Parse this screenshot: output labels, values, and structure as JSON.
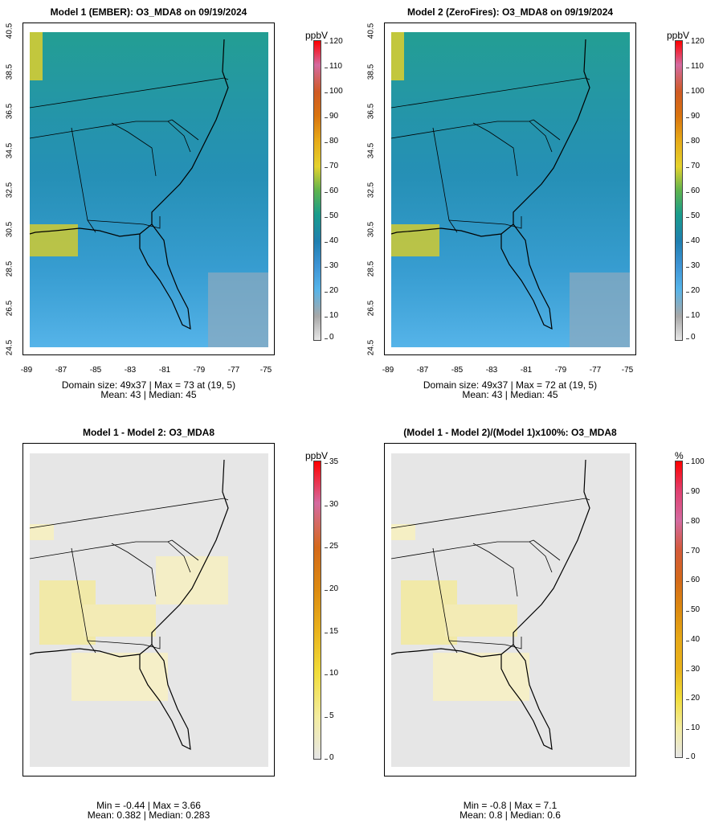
{
  "panels": [
    {
      "title": "Model 1 (EMBER): O3_MDA8 on 09/19/2024",
      "stats_line1": "Domain size: 49x37 | Max = 73 at (19, 5)",
      "stats_line2": "Mean: 43 |  Median: 45",
      "colorbar_unit": "ppbV",
      "colorbar_ticks": [
        "120",
        "110",
        "100",
        "90",
        "80",
        "70",
        "60",
        "50",
        "40",
        "30",
        "20",
        "10",
        "0"
      ],
      "kind": "conc"
    },
    {
      "title": "Model 2 (ZeroFires): O3_MDA8 on 09/19/2024",
      "stats_line1": "Domain size: 49x37 | Max = 72 at (19, 5)",
      "stats_line2": "Mean: 43 |  Median: 45",
      "colorbar_unit": "ppbV",
      "colorbar_ticks": [
        "120",
        "110",
        "100",
        "90",
        "80",
        "70",
        "60",
        "50",
        "40",
        "30",
        "20",
        "10",
        "0"
      ],
      "kind": "conc"
    },
    {
      "title": "Model 1 - Model 2: O3_MDA8",
      "stats_line1": "Min = -0.44 | Max = 3.66",
      "stats_line2": "Mean: 0.382 |  Median: 0.283",
      "colorbar_unit": "ppbV",
      "colorbar_ticks": [
        "35",
        "30",
        "25",
        "20",
        "15",
        "10",
        "5",
        "0"
      ],
      "kind": "diff"
    },
    {
      "title": "(Model 1 - Model 2)/(Model 1)x100%: O3_MDA8",
      "stats_line1": "Min = -0.8 | Max = 7.1",
      "stats_line2": "Mean: 0.8 |  Median: 0.6",
      "colorbar_unit": "%",
      "colorbar_ticks": [
        "100",
        "90",
        "80",
        "70",
        "60",
        "50",
        "40",
        "30",
        "20",
        "10",
        "0"
      ],
      "kind": "diff"
    }
  ],
  "axes": {
    "lat_ticks": [
      "40.5",
      "38.5",
      "36.5",
      "34.5",
      "32.5",
      "30.5",
      "28.5",
      "26.5",
      "24.5"
    ],
    "lon_ticks": [
      "-89",
      "-87",
      "-85",
      "-83",
      "-81",
      "-79",
      "-77",
      "-75"
    ]
  },
  "colors": {
    "map_background": "#e6e6e6",
    "conc_palette": [
      "#e6e6e6",
      "#a8a8a8",
      "#56b4e9",
      "#3d93d4",
      "#1f7fb0",
      "#199c8c",
      "#5fb34e",
      "#a8c83a",
      "#e4d22d",
      "#e6a817",
      "#d9730f",
      "#cf5a24",
      "#d46aa0",
      "#ff0000"
    ],
    "diff_palette": [
      "#e6e6e6",
      "#f3eca0",
      "#f1dd3a",
      "#e9b21c",
      "#dc8a10",
      "#d4691a",
      "#d46aa0",
      "#ff0000"
    ]
  }
}
